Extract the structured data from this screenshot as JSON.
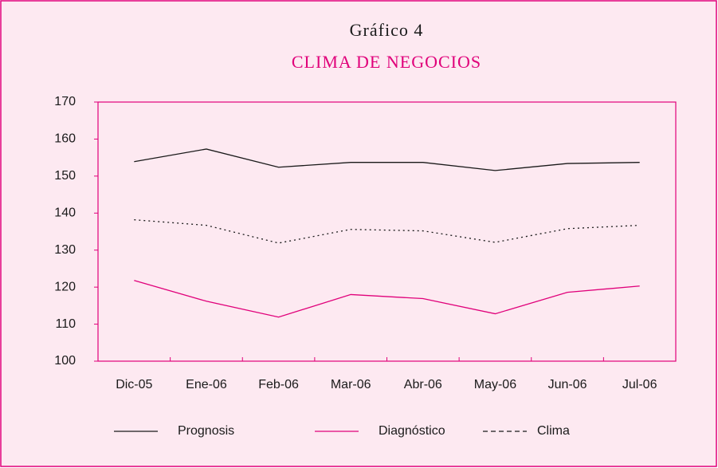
{
  "chart_data": {
    "type": "line",
    "title": "Gráfico 4",
    "subtitle": "CLIMA DE NEGOCIOS",
    "categories": [
      "Dic-05",
      "Ene-06",
      "Feb-06",
      "Mar-06",
      "Abr-06",
      "May-06",
      "Jun-06",
      "Jul-06"
    ],
    "series": [
      {
        "name": "Prognosis",
        "color": "#1a1a1a",
        "style": "solid",
        "values": [
          153.9,
          157.3,
          152.4,
          153.7,
          153.7,
          151.5,
          153.4,
          153.7
        ]
      },
      {
        "name": "Diagnóstico",
        "color": "#e0007a",
        "style": "solid",
        "values": [
          121.8,
          116.2,
          111.9,
          118.0,
          116.9,
          112.8,
          118.6,
          120.3
        ]
      },
      {
        "name": "Clima",
        "color": "#1a1a1a",
        "style": "dotted",
        "values": [
          138.2,
          136.7,
          131.9,
          135.6,
          135.2,
          132.1,
          135.8,
          136.7
        ]
      }
    ],
    "ylim": [
      100,
      170
    ],
    "yticks": [
      100,
      110,
      120,
      130,
      140,
      150,
      160,
      170
    ],
    "grid": false,
    "legend": "bottom"
  }
}
